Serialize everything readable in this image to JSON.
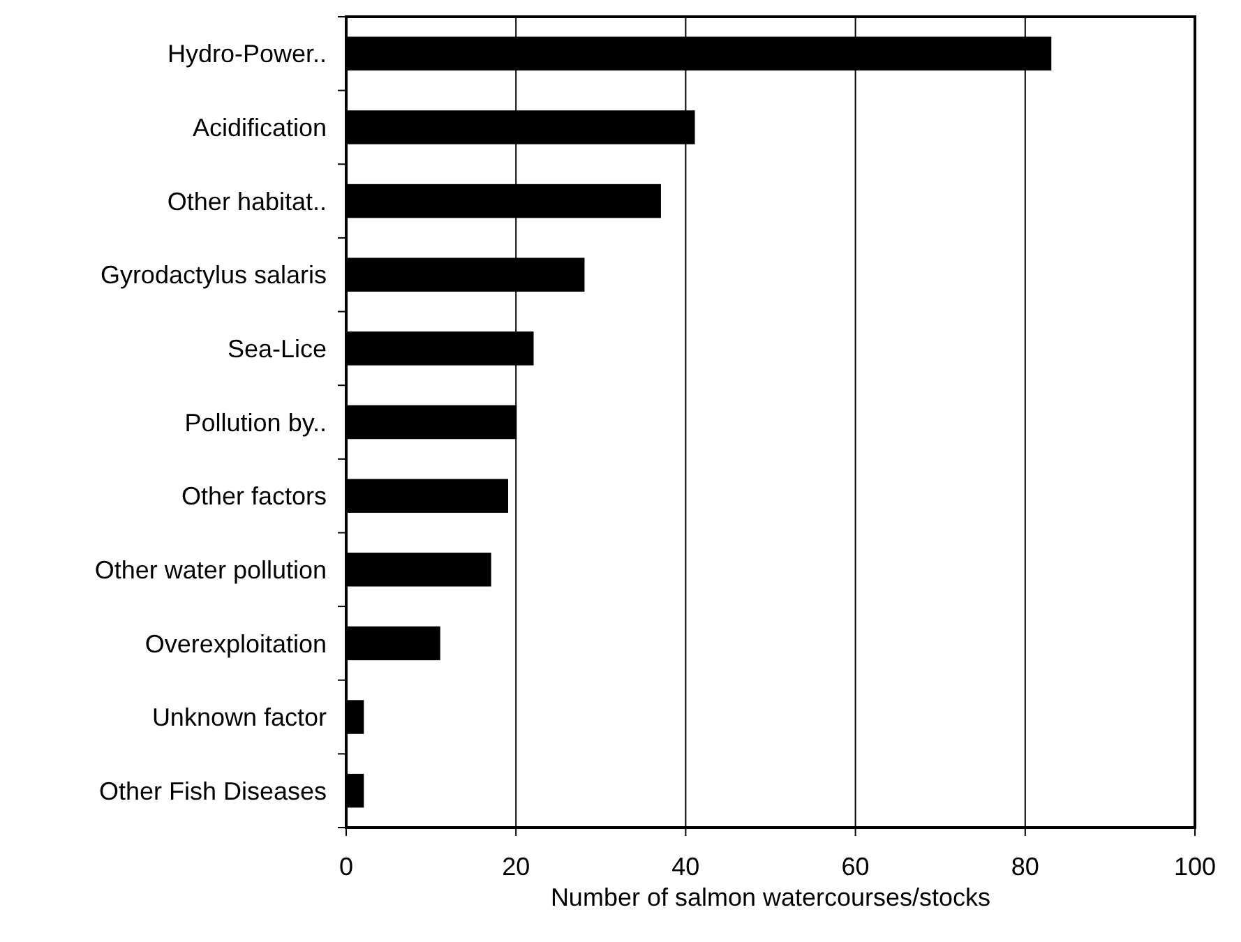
{
  "chart_data": {
    "type": "bar",
    "orientation": "horizontal",
    "xlabel": "Number of salmon watercourses/stocks",
    "categories": [
      "Hydro-Power..",
      "Acidification",
      "Other habitat..",
      "Gyrodactylus salaris",
      "Sea-Lice",
      "Pollution by..",
      "Other factors",
      "Other water pollution",
      "Overexploitation",
      "Unknown factor",
      "Other Fish Diseases"
    ],
    "values": [
      83,
      41,
      37,
      28,
      22,
      20,
      19,
      17,
      11,
      2,
      2
    ],
    "color": "#000000",
    "xlim": [
      0,
      100
    ],
    "xticks": [
      0,
      20,
      40,
      60,
      80,
      100
    ],
    "grid": "x"
  }
}
